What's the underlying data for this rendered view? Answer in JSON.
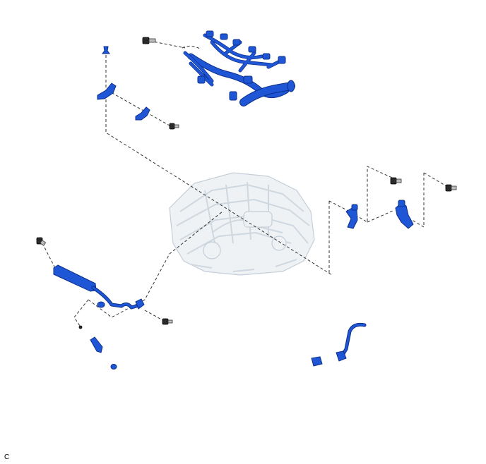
{
  "corner_label": "C",
  "colors": {
    "part_blue": "#1f56d6",
    "part_outline": "#0d2f8a",
    "engine_ghost": "#cfd8e0",
    "leader_line": "#333333"
  }
}
